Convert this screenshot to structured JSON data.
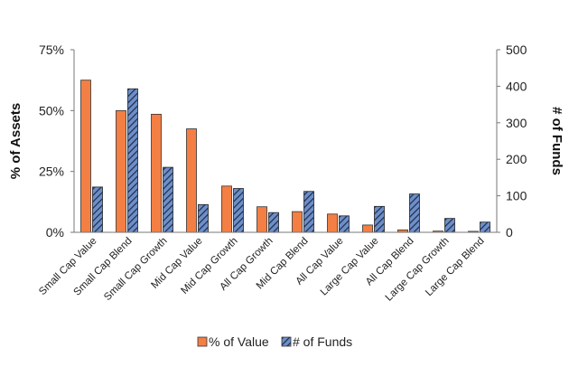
{
  "chart_data": {
    "type": "bar",
    "categories": [
      "Small Cap Value",
      "Small Cap Blend",
      "Small Cap Growth",
      "Mid Cap Value",
      "Mid Cap Growth",
      "All Cap Growth",
      "Mid Cap Blend",
      "All Cap Value",
      "Large Cap Value",
      "All Cap Blend",
      "Large Cap Growth",
      "Large Cap Blend"
    ],
    "series": [
      {
        "name": "% of Value",
        "axis": "left",
        "color": "#F37F44",
        "values": [
          62.5,
          50,
          48.5,
          42.5,
          19,
          10.5,
          8.5,
          7.5,
          3,
          1,
          0.5,
          0.4
        ]
      },
      {
        "name": "# of Funds",
        "axis": "right",
        "color": "#6D8FC9",
        "pattern": "diagonal-hatch",
        "values": [
          124,
          393,
          178,
          76,
          120,
          54,
          112,
          45,
          71,
          105,
          38,
          28
        ]
      }
    ],
    "ylabel": "% of Assets",
    "y2label": "# of Funds",
    "ylim": [
      0,
      75
    ],
    "yticks": [
      "0%",
      "25%",
      "50%",
      "75%"
    ],
    "y2lim": [
      0,
      500
    ],
    "y2ticks": [
      "0",
      "100",
      "200",
      "300",
      "400",
      "500"
    ],
    "grid": false,
    "legend_position": "bottom"
  }
}
